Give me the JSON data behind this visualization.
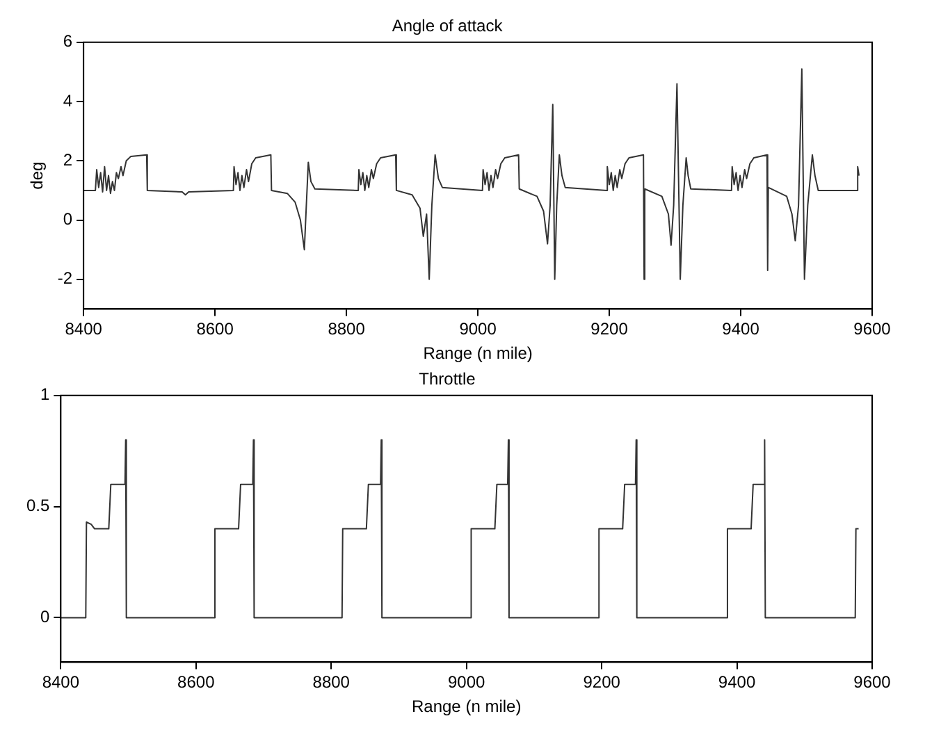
{
  "chart_data": [
    {
      "type": "line",
      "title": "Angle of attack",
      "xlabel": "Range (n mile)",
      "ylabel": "deg",
      "color": "#333333",
      "xlim": [
        8400,
        9600
      ],
      "xticks": [
        8400,
        8600,
        8800,
        9000,
        9200,
        9400,
        9600
      ],
      "ylim": [
        -3,
        6
      ],
      "yticks": [
        -2,
        0,
        2,
        4,
        6
      ],
      "x": [
        8400,
        8418,
        8420,
        8423,
        8426,
        8429,
        8432,
        8435,
        8438,
        8441,
        8444,
        8447,
        8450,
        8453,
        8457,
        8460,
        8465,
        8472,
        8496,
        8497,
        8550,
        8555,
        8560,
        8628,
        8629,
        8632,
        8635,
        8638,
        8641,
        8644,
        8648,
        8651,
        8656,
        8662,
        8685,
        8686,
        8710,
        8722,
        8730,
        8733,
        8736,
        8739,
        8742,
        8746,
        8752,
        8818,
        8819,
        8822,
        8825,
        8828,
        8831,
        8834,
        8838,
        8841,
        8846,
        8852,
        8875,
        8876,
        8900,
        8912,
        8917,
        8922,
        8926,
        8930,
        8935,
        8940,
        8946,
        9007,
        9008,
        9011,
        9014,
        9017,
        9020,
        9023,
        9027,
        9030,
        9035,
        9041,
        9062,
        9063,
        9090,
        9100,
        9106,
        9110,
        9114,
        9117,
        9120,
        9124,
        9128,
        9133,
        9196,
        9197,
        9200,
        9203,
        9206,
        9209,
        9212,
        9216,
        9219,
        9224,
        9230,
        9252,
        9253,
        9254,
        9280,
        9290,
        9294,
        9298,
        9303,
        9308,
        9312,
        9317,
        9320,
        9324,
        9386,
        9387,
        9390,
        9393,
        9396,
        9399,
        9402,
        9406,
        9409,
        9414,
        9420,
        9440,
        9441,
        9442,
        9470,
        9478,
        9483,
        9488,
        9493,
        9497,
        9502,
        9509,
        9513,
        9518,
        9577,
        9578,
        9580
      ],
      "values": [
        1.0,
        1.0,
        1.7,
        1.1,
        1.6,
        0.95,
        1.8,
        1.0,
        1.5,
        0.9,
        1.3,
        1.0,
        1.6,
        1.4,
        1.8,
        1.5,
        2.0,
        2.15,
        2.2,
        1.0,
        0.95,
        0.85,
        0.95,
        1.0,
        1.8,
        1.2,
        1.6,
        1.0,
        1.5,
        1.1,
        1.7,
        1.3,
        1.9,
        2.1,
        2.2,
        1.0,
        0.9,
        0.6,
        0.0,
        -0.5,
        -1.0,
        0.5,
        1.95,
        1.3,
        1.05,
        1.0,
        1.7,
        1.2,
        1.6,
        1.0,
        1.5,
        1.1,
        1.7,
        1.4,
        1.9,
        2.1,
        2.2,
        1.0,
        0.85,
        0.4,
        -0.55,
        0.2,
        -2.0,
        0.5,
        2.2,
        1.4,
        1.1,
        1.0,
        1.7,
        1.2,
        1.6,
        1.0,
        1.5,
        1.1,
        1.7,
        1.4,
        1.9,
        2.1,
        2.2,
        1.05,
        0.8,
        0.3,
        -0.8,
        0.5,
        3.9,
        -2.0,
        0.5,
        2.2,
        1.5,
        1.1,
        1.0,
        1.8,
        1.2,
        1.6,
        1.0,
        1.5,
        1.1,
        1.7,
        1.4,
        1.9,
        2.1,
        2.2,
        -2.0,
        1.05,
        0.8,
        0.2,
        -0.85,
        0.5,
        4.6,
        -2.0,
        0.5,
        2.1,
        1.5,
        1.05,
        1.0,
        1.8,
        1.2,
        1.6,
        1.0,
        1.5,
        1.1,
        1.7,
        1.4,
        1.9,
        2.1,
        2.2,
        -1.7,
        1.1,
        0.8,
        0.2,
        -0.7,
        0.5,
        5.1,
        -2.0,
        0.5,
        2.2,
        1.5,
        1.0,
        1.0,
        1.8,
        1.5
      ]
    },
    {
      "type": "line",
      "title": "Throttle",
      "xlabel": "Range (n mile)",
      "color": "#333333",
      "xlim": [
        8400,
        9600
      ],
      "xticks": [
        8400,
        8600,
        8800,
        9000,
        9200,
        9400,
        9600
      ],
      "ylim": [
        -0.2,
        1
      ],
      "yticks": [
        0,
        0.5,
        1
      ],
      "x": [
        8400,
        8437,
        8438,
        8445,
        8450,
        8471,
        8474,
        8495,
        8496,
        8497,
        8627,
        8628,
        8663,
        8666,
        8684,
        8685,
        8686,
        8816,
        8817,
        8852,
        8855,
        8873,
        8874,
        8875,
        9006,
        9007,
        9042,
        9045,
        9061,
        9062,
        9063,
        9195,
        9196,
        9231,
        9234,
        9250,
        9251,
        9252,
        9385,
        9386,
        9421,
        9424,
        9440,
        9441,
        9442,
        9575,
        9576,
        9580
      ],
      "values": [
        0,
        0,
        0.43,
        0.42,
        0.4,
        0.4,
        0.6,
        0.6,
        0.8,
        0,
        0,
        0.4,
        0.4,
        0.6,
        0.6,
        0.8,
        0,
        0,
        0.4,
        0.4,
        0.6,
        0.6,
        0.8,
        0,
        0,
        0.4,
        0.4,
        0.6,
        0.6,
        0.8,
        0,
        0,
        0.4,
        0.4,
        0.6,
        0.6,
        0.8,
        0,
        0,
        0.4,
        0.4,
        0.6,
        0.6,
        0.8,
        0,
        0,
        0.4,
        0.4
      ]
    }
  ]
}
